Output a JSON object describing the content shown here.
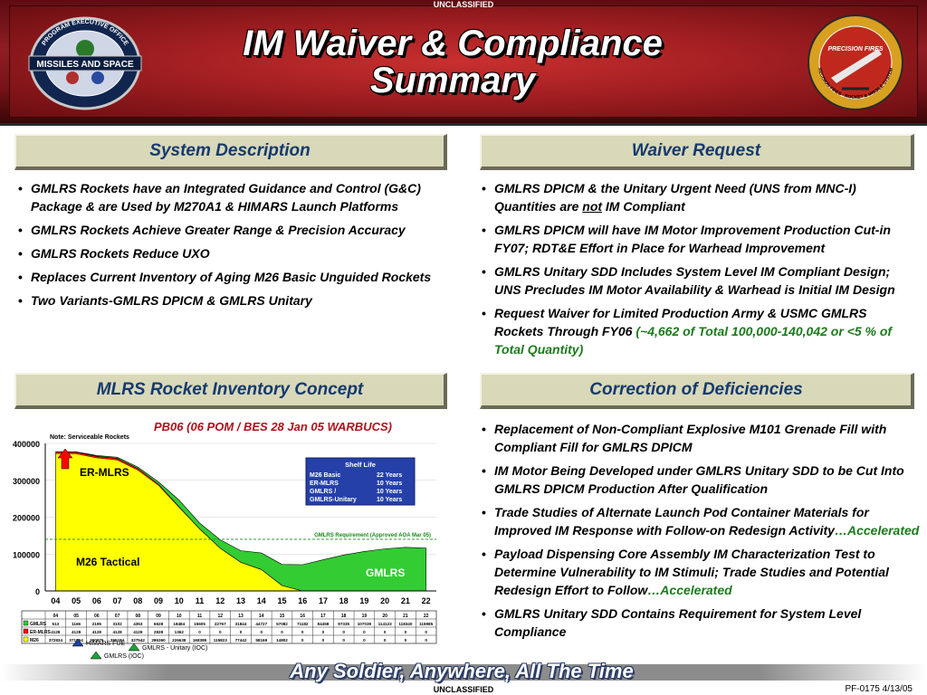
{
  "classification_top": "UNCLASSIFIED",
  "classification_bottom": "UNCLASSIFIED",
  "title_line1": "IM Waiver & Compliance",
  "title_line2": "Summary",
  "left_logo": {
    "text": "MISSILES AND SPACE",
    "ring_text": "PROGRAM EXECUTIVE OFFICE"
  },
  "right_logo": {
    "text": "PRECISION FIRES",
    "ring_text": "PRECISION FIRES · ROCKET & MISSILE SYSTEMS"
  },
  "sections": {
    "system_description": {
      "title": "System Description",
      "bullets": [
        "GMLRS Rockets have an Integrated Guidance and Control (G&C) Package & are Used by M270A1 & HIMARS Launch Platforms",
        "GMLRS Rockets Achieve Greater Range & Precision Accuracy",
        "GMLRS Rockets Reduce UXO",
        "Replaces Current Inventory of Aging M26 Basic Unguided Rockets",
        "Two Variants-GMLRS DPICM & GMLRS Unitary"
      ]
    },
    "waiver_request": {
      "title": "Waiver Request",
      "b1_pre": "GMLRS DPICM & the Unitary Urgent Need (UNS from MNC-I) Quantities are ",
      "b1_not": "not",
      "b1_post": " IM Compliant",
      "b2": "GMLRS DPICM will have IM Motor Improvement Production Cut-in FY07; RDT&E Effort in Place for Warhead Improvement",
      "b3": "GMLRS Unitary SDD Includes System Level IM Compliant Design; UNS Precludes IM Motor Availability & Warhead is Initial IM Design",
      "b4_pre": "Request Waiver for Limited Production Army & USMC GMLRS Rockets Through FY06 ",
      "b4_accent": "(~4,662 of Total 100,000-140,042 or <5 % of Total Quantity)"
    },
    "inventory_concept": {
      "title": "MLRS Rocket Inventory Concept"
    },
    "correction": {
      "title": "Correction of Deficiencies",
      "b1": "Replacement of Non-Compliant Explosive M101 Grenade Fill with Compliant Fill for GMLRS DPICM",
      "b2": "IM Motor Being Developed under GMLRS Unitary SDD to be Cut Into GMLRS DPICM Production After Qualification",
      "b3_pre": "Trade Studies of Alternate Launch Pod Container Materials for Improved IM Response with Follow-on Redesign Activity",
      "b3_accent": "…Accelerated",
      "b4_pre": "Payload Dispensing Core Assembly IM Characterization Test to Determine Vulnerability to IM Stimuli; Trade Studies and Potential Redesign Effort to Follow",
      "b4_accent": "…Accelerated",
      "b5": "GMLRS Unitary SDD Contains Requirement for System Level Compliance"
    }
  },
  "chart_subtitle": "PB06 (06 POM / BES 28 Jan 05 WARBUCS)",
  "chart_data": {
    "type": "area",
    "note": "Note:  Serviceable Rockets",
    "x": [
      "04",
      "05",
      "06",
      "07",
      "08",
      "09",
      "10",
      "11",
      "12",
      "13",
      "14",
      "15",
      "16",
      "17",
      "18",
      "19",
      "20",
      "21",
      "22"
    ],
    "ylim": [
      0,
      400000
    ],
    "yticks": [
      "0",
      "100000",
      "200000",
      "300000",
      "400000"
    ],
    "series": [
      {
        "name": "M26",
        "label": "M26 Tactical",
        "values": [
          372834,
          371964,
          360976,
          355184,
          327542,
          286360,
          226638,
          168389,
          115823,
          77442,
          58169,
          14802,
          0,
          0,
          0,
          0,
          0,
          0,
          0
        ]
      },
      {
        "name": "ER-MLRS",
        "label": "ER-MLRS",
        "values": [
          4128,
          4128,
          4128,
          4128,
          4128,
          2828,
          1362,
          0,
          0,
          0,
          0,
          0,
          0,
          0,
          0,
          0,
          0,
          0,
          0
        ]
      },
      {
        "name": "GMLRS",
        "label": "GMLRS",
        "values": [
          513,
          1166,
          2195,
          3102,
          4353,
          6628,
          18484,
          15605,
          22767,
          31844,
          44727,
          57082,
          71182,
          84458,
          97335,
          107039,
          114123,
          118340,
          115985
        ]
      }
    ],
    "table_cells": [
      [
        "513",
        "1166",
        "2195",
        "3102",
        "4353",
        "6628",
        "18484",
        "15605",
        "22767",
        "31844",
        "44727",
        "57082",
        "71182",
        "84458",
        "97335",
        "107039",
        "114123",
        "118340",
        "115985"
      ],
      [
        "4128",
        "4128",
        "4128",
        "4128",
        "4128",
        "2828",
        "1362",
        "0",
        "0",
        "0",
        "0",
        "0",
        "0",
        "0",
        "0",
        "0",
        "0",
        "0",
        "0"
      ],
      [
        "372834",
        "371964",
        "360976",
        "355184",
        "327542",
        "286360",
        "226638",
        "168389",
        "115823",
        "77442",
        "58169",
        "14802",
        "0",
        "0",
        "0",
        "0",
        "0",
        "0",
        "0"
      ]
    ],
    "requirement": {
      "label": "GMLRS Requirement (Approved AOA Mar 05)",
      "value": 140042
    },
    "shelf_life": {
      "title": "Shelf Life",
      "rows": [
        [
          "M26 Basic",
          "22 Years"
        ],
        [
          "ER-MLRS",
          "10 Years"
        ],
        [
          "GMLRS /",
          "10 Years"
        ],
        [
          "GMLRS-Unitary",
          "10 Years"
        ]
      ]
    },
    "milestones": [
      {
        "label": "HIMARS FUE",
        "color": "#1f3fa0"
      },
      {
        "label": "GMLRS - Unitary (IOC)",
        "color": "#1fa03a"
      },
      {
        "label": "GMLRS (IOC)",
        "color": "#1fa03a"
      }
    ],
    "colors": {
      "m26": "#ffff00",
      "gmlrs": "#33cc33",
      "er": "#ff0000"
    }
  },
  "footer": {
    "slogan": "Any Soldier, Anywhere, All The Time",
    "code": "PF-0175  4/13/05"
  }
}
